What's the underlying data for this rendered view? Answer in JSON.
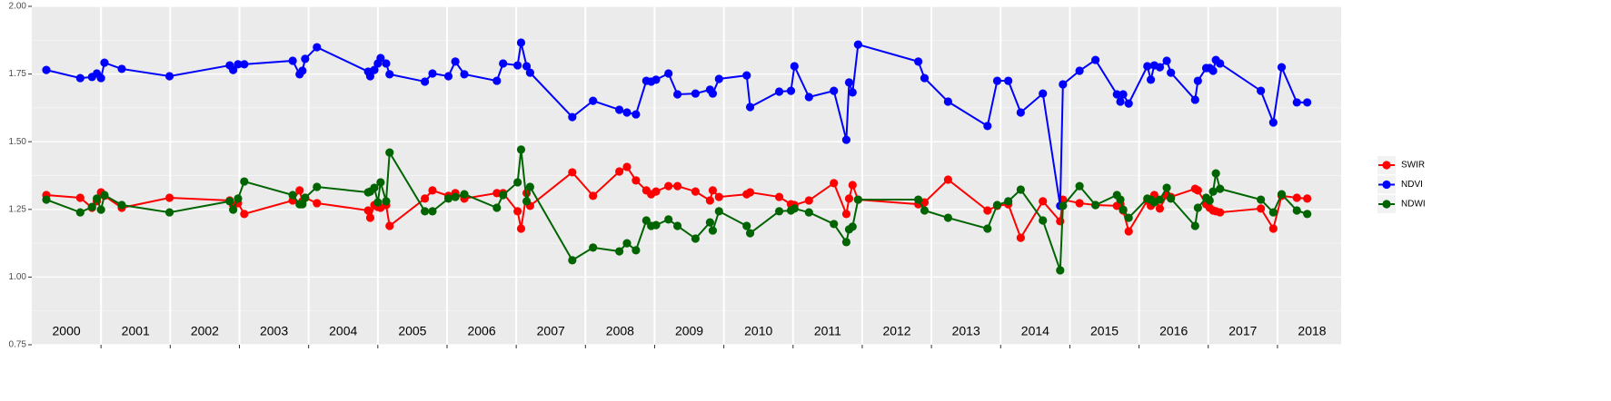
{
  "chart_data": {
    "type": "line",
    "x": [
      2000.21,
      2000.7,
      2000.87,
      2000.94,
      2001.0,
      2001.05,
      2001.3,
      2001.99,
      2002.86,
      2002.91,
      2002.98,
      2003.07,
      2003.77,
      2003.87,
      2003.91,
      2003.95,
      2004.12,
      2004.86,
      2004.89,
      2004.95,
      2005.0,
      2005.04,
      2005.12,
      2005.17,
      2005.68,
      2005.79,
      2006.02,
      2006.12,
      2006.25,
      2006.72,
      2006.81,
      2007.02,
      2007.07,
      2007.15,
      2007.2,
      2007.81,
      2008.11,
      2008.49,
      2008.6,
      2008.73,
      2008.88,
      2008.95,
      2009.02,
      2009.2,
      2009.33,
      2009.59,
      2009.8,
      2009.84,
      2009.93,
      2010.33,
      2010.38,
      2010.8,
      2010.97,
      2011.02,
      2011.23,
      2011.59,
      2011.77,
      2011.81,
      2011.86,
      2011.94,
      2012.81,
      2012.9,
      2013.24,
      2013.81,
      2013.95,
      2014.11,
      2014.29,
      2014.61,
      2014.86,
      2014.9,
      2015.14,
      2015.37,
      2015.68,
      2015.73,
      2015.77,
      2015.85,
      2016.12,
      2016.17,
      2016.22,
      2016.3,
      2016.4,
      2016.46,
      2016.81,
      2016.85,
      2016.97,
      2017.02,
      2017.07,
      2017.11,
      2017.17,
      2017.76,
      2017.94,
      2018.06,
      2018.28,
      2018.43
    ],
    "series": [
      {
        "name": "SWIR",
        "color": "#ff0000",
        "values": [
          1.303,
          1.293,
          1.256,
          1.28,
          1.313,
          1.3,
          1.256,
          1.293,
          1.283,
          1.266,
          1.273,
          1.233,
          1.283,
          1.32,
          1.28,
          1.293,
          1.273,
          1.246,
          1.219,
          1.266,
          1.259,
          1.256,
          1.266,
          1.189,
          1.29,
          1.32,
          1.3,
          1.31,
          1.29,
          1.31,
          1.31,
          1.243,
          1.179,
          1.31,
          1.263,
          1.387,
          1.3,
          1.39,
          1.407,
          1.357,
          1.32,
          1.306,
          1.316,
          1.336,
          1.336,
          1.316,
          1.283,
          1.32,
          1.296,
          1.306,
          1.313,
          1.296,
          1.269,
          1.266,
          1.283,
          1.347,
          1.233,
          1.29,
          1.34,
          1.286,
          1.269,
          1.276,
          1.36,
          1.246,
          1.263,
          1.269,
          1.145,
          1.28,
          1.206,
          1.286,
          1.273,
          1.266,
          1.263,
          1.269,
          1.246,
          1.169,
          1.283,
          1.263,
          1.303,
          1.253,
          1.303,
          1.296,
          1.326,
          1.32,
          1.269,
          1.256,
          1.246,
          1.243,
          1.239,
          1.253,
          1.179,
          1.3,
          1.293,
          1.29
        ]
      },
      {
        "name": "NDVI",
        "color": "#0000ff",
        "values": [
          1.765,
          1.735,
          1.739,
          1.752,
          1.735,
          1.792,
          1.769,
          1.742,
          1.782,
          1.765,
          1.786,
          1.786,
          1.799,
          1.749,
          1.762,
          1.806,
          1.849,
          1.759,
          1.742,
          1.765,
          1.789,
          1.809,
          1.789,
          1.749,
          1.722,
          1.752,
          1.742,
          1.796,
          1.749,
          1.725,
          1.789,
          1.782,
          1.866,
          1.779,
          1.755,
          1.591,
          1.651,
          1.618,
          1.608,
          1.601,
          1.725,
          1.722,
          1.729,
          1.752,
          1.675,
          1.678,
          1.692,
          1.678,
          1.732,
          1.745,
          1.628,
          1.685,
          1.688,
          1.779,
          1.665,
          1.688,
          1.507,
          1.719,
          1.682,
          1.859,
          1.796,
          1.735,
          1.648,
          1.558,
          1.725,
          1.725,
          1.608,
          1.678,
          1.263,
          1.712,
          1.762,
          1.802,
          1.675,
          1.648,
          1.675,
          1.641,
          1.779,
          1.729,
          1.782,
          1.775,
          1.799,
          1.755,
          1.655,
          1.725,
          1.772,
          1.772,
          1.762,
          1.802,
          1.789,
          1.688,
          1.571,
          1.775,
          1.645,
          1.645
        ]
      },
      {
        "name": "NDWI",
        "color": "#006400",
        "values": [
          1.286,
          1.239,
          1.259,
          1.29,
          1.249,
          1.303,
          1.266,
          1.239,
          1.28,
          1.249,
          1.29,
          1.353,
          1.303,
          1.269,
          1.269,
          1.293,
          1.333,
          1.313,
          1.316,
          1.33,
          1.276,
          1.35,
          1.28,
          1.46,
          1.243,
          1.243,
          1.29,
          1.296,
          1.306,
          1.256,
          1.303,
          1.35,
          1.471,
          1.28,
          1.333,
          1.062,
          1.109,
          1.095,
          1.125,
          1.099,
          1.209,
          1.189,
          1.192,
          1.213,
          1.189,
          1.142,
          1.202,
          1.172,
          1.243,
          1.189,
          1.162,
          1.243,
          1.246,
          1.253,
          1.239,
          1.196,
          1.129,
          1.176,
          1.186,
          1.286,
          1.286,
          1.246,
          1.219,
          1.179,
          1.266,
          1.28,
          1.323,
          1.209,
          1.025,
          1.263,
          1.336,
          1.266,
          1.303,
          1.286,
          1.249,
          1.219,
          1.29,
          1.286,
          1.276,
          1.286,
          1.33,
          1.29,
          1.189,
          1.256,
          1.293,
          1.283,
          1.316,
          1.383,
          1.326,
          1.286,
          1.239,
          1.306,
          1.246,
          1.233
        ]
      }
    ],
    "xlim": [
      2000,
      2018.92
    ],
    "xticks": [
      2001,
      2002,
      2003,
      2004,
      2005,
      2006,
      2007,
      2008,
      2009,
      2010,
      2011,
      2012,
      2013,
      2014,
      2015,
      2016,
      2017,
      2018
    ],
    "ylim": [
      0.75,
      2.0
    ],
    "yticks": [
      0.75,
      {
        "value": 1.0,
        "label": "1.00"
      },
      1.25,
      {
        "value": 1.5,
        "label": "1.50"
      },
      1.75,
      {
        "value": 2.0,
        "label": "2.00"
      }
    ],
    "annotations": [
      "2000",
      "2001",
      "2002",
      "2003",
      "2004",
      "2005",
      "2006",
      "2007",
      "2008",
      "2009",
      "2010",
      "2011",
      "2012",
      "2013",
      "2014",
      "2015",
      "2016",
      "2017",
      "2018"
    ],
    "grid": true,
    "legend": "right"
  }
}
